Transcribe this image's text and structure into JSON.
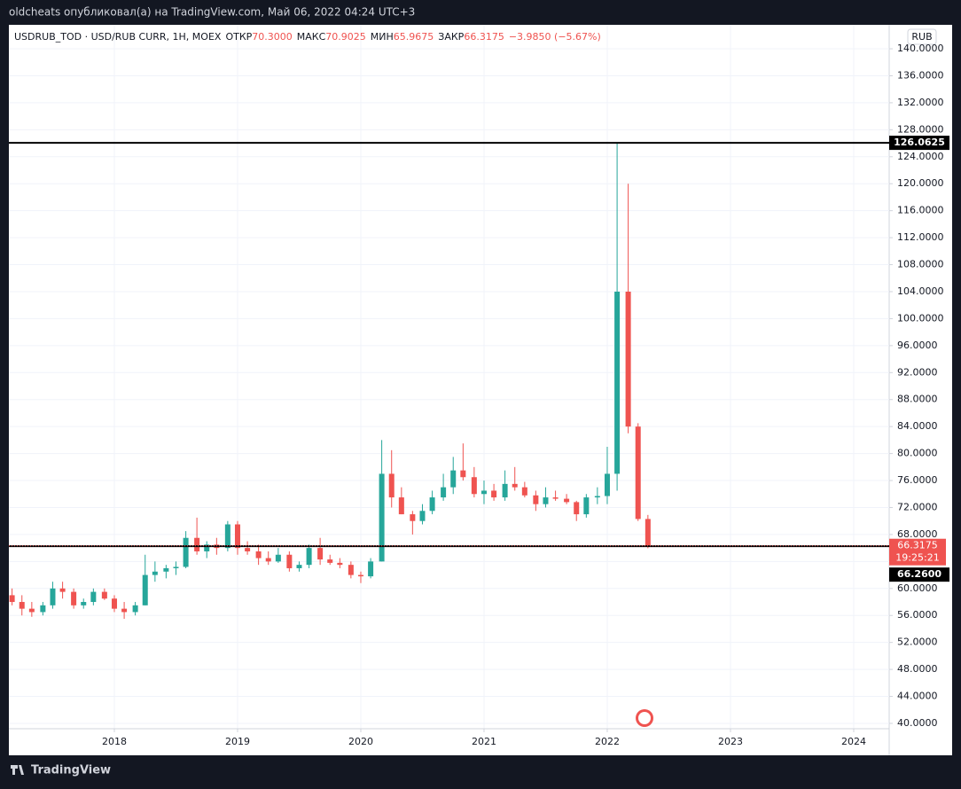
{
  "header": {
    "publisher": "oldcheats опубликовал(а) на TradingView.com, Май 06, 2022 04:24 UTC+3"
  },
  "footer": {
    "brand": "TradingView"
  },
  "chart_data": {
    "type": "candlestick",
    "legend": {
      "symbol": "USDRUB_TOD · USD/RUB CURR, 1H, MOEX",
      "fields": [
        {
          "label": "ОТКР",
          "value": "70.3000"
        },
        {
          "label": "МАКС",
          "value": "70.9025"
        },
        {
          "label": "МИН",
          "value": "65.9675"
        },
        {
          "label": "ЗАКР",
          "value": "66.3175"
        }
      ],
      "change": "−3.9850 (−5.67%)"
    },
    "currency": "RUB",
    "up_color": "#26a69a",
    "down_color": "#ef5350",
    "grid": true,
    "x": [
      2017.17,
      2017.25,
      2017.33,
      2017.42,
      2017.5,
      2017.58,
      2017.67,
      2017.75,
      2017.83,
      2017.92,
      2018.0,
      2018.08,
      2018.17,
      2018.25,
      2018.33,
      2018.42,
      2018.5,
      2018.58,
      2018.67,
      2018.75,
      2018.83,
      2018.92,
      2019.0,
      2019.08,
      2019.17,
      2019.25,
      2019.33,
      2019.42,
      2019.5,
      2019.58,
      2019.67,
      2019.75,
      2019.83,
      2019.92,
      2020.0,
      2020.08,
      2020.17,
      2020.25,
      2020.33,
      2020.42,
      2020.5,
      2020.58,
      2020.67,
      2020.75,
      2020.83,
      2020.92,
      2021.0,
      2021.08,
      2021.17,
      2021.25,
      2021.33,
      2021.42,
      2021.5,
      2021.58,
      2021.67,
      2021.75,
      2021.83,
      2021.92,
      2022.0,
      2022.08,
      2022.17,
      2022.25,
      2022.33
    ],
    "open": [
      59,
      58,
      57,
      56.5,
      57.5,
      60,
      59.5,
      57.5,
      58,
      59.5,
      58.5,
      57,
      56.5,
      57.5,
      62,
      62.5,
      63,
      63.2,
      67.5,
      65.5,
      66.5,
      66,
      69.5,
      66,
      65.5,
      64.5,
      64,
      65,
      63,
      63.5,
      66,
      64.3,
      63.8,
      63.5,
      62,
      61.8,
      64,
      77,
      73.5,
      71,
      70,
      71.5,
      73.5,
      75,
      77.5,
      76.5,
      74,
      74.5,
      73.5,
      75.5,
      75,
      73.8,
      72.5,
      73.5,
      73.3,
      72.8,
      71,
      73.5,
      73.7,
      77,
      104,
      84,
      70.3
    ],
    "high": [
      60,
      59,
      58,
      58,
      61,
      61,
      60,
      58.5,
      60,
      60,
      59,
      58,
      58,
      65,
      64,
      63.5,
      64,
      68.5,
      70.5,
      67,
      67.5,
      70,
      70,
      67,
      66.5,
      65.5,
      66,
      65.5,
      64,
      66.5,
      67.5,
      65,
      64.5,
      64,
      62.5,
      64.5,
      82,
      80.5,
      75,
      71.5,
      72.5,
      74.5,
      77,
      79.5,
      81.5,
      78,
      76,
      75.5,
      77.5,
      78,
      75.8,
      74.5,
      75,
      74.5,
      74,
      73,
      74,
      75,
      81,
      126.0625,
      120,
      84.5,
      70.9025
    ],
    "low": [
      57.5,
      56,
      55.8,
      56,
      57,
      58.5,
      57,
      57,
      57.5,
      58.3,
      56.5,
      55.5,
      56,
      57.5,
      61,
      61.5,
      62,
      63,
      65,
      64.5,
      65,
      65.5,
      65,
      65,
      63.5,
      63.5,
      63.8,
      62.5,
      62.5,
      63,
      63.5,
      63.5,
      63,
      61.5,
      60.8,
      61.5,
      64,
      72,
      71,
      68,
      69.5,
      71,
      73,
      74,
      76,
      73.5,
      72.5,
      73,
      73,
      74.5,
      73.5,
      71.5,
      72,
      73,
      72.5,
      70,
      70.5,
      72.5,
      72.5,
      74.5,
      83,
      70,
      65.9675
    ],
    "close": [
      58,
      57,
      56.5,
      57.5,
      60,
      59.5,
      57.5,
      58,
      59.5,
      58.5,
      57,
      56.5,
      57.5,
      62,
      62.5,
      63,
      63.2,
      67.5,
      65.5,
      66.5,
      66,
      69.5,
      66,
      65.5,
      64.5,
      64,
      65,
      63,
      63.5,
      66,
      64.3,
      63.8,
      63.5,
      62,
      61.8,
      64,
      77,
      73.5,
      71,
      70,
      71.5,
      73.5,
      75,
      77.5,
      76.5,
      74,
      74.5,
      73.5,
      75.5,
      75,
      73.8,
      72.5,
      73.5,
      73.3,
      72.8,
      71,
      73.5,
      73.7,
      77,
      104,
      84,
      70.3,
      66.3175
    ],
    "xlim": [
      2017.144,
      2024.288
    ],
    "xticks": [
      2018,
      2019,
      2020,
      2021,
      2022,
      2023,
      2024
    ],
    "ylim": [
      39.21,
      143.29
    ],
    "yticks": [
      {
        "value": 40,
        "label": "40.0000"
      },
      {
        "value": 44,
        "label": "44.0000"
      },
      {
        "value": 48,
        "label": "48.0000"
      },
      {
        "value": 52,
        "label": "52.0000"
      },
      {
        "value": 56,
        "label": "56.0000"
      },
      {
        "value": 60,
        "label": "60.0000"
      },
      {
        "value": 64,
        "label": "64.0000"
      },
      {
        "value": 68,
        "label": "68.0000"
      },
      {
        "value": 72,
        "label": "72.0000"
      },
      {
        "value": 76,
        "label": "76.0000"
      },
      {
        "value": 80,
        "label": "80.0000"
      },
      {
        "value": 84,
        "label": "84.0000"
      },
      {
        "value": 88,
        "label": "88.0000"
      },
      {
        "value": 92,
        "label": "92.0000"
      },
      {
        "value": 96,
        "label": "96.0000"
      },
      {
        "value": 100,
        "label": "100.0000"
      },
      {
        "value": 104,
        "label": "104.0000"
      },
      {
        "value": 108,
        "label": "108.0000"
      },
      {
        "value": 112,
        "label": "112.0000"
      },
      {
        "value": 116,
        "label": "116.0000"
      },
      {
        "value": 120,
        "label": "120.0000"
      },
      {
        "value": 124,
        "label": "124.0000"
      },
      {
        "value": 128,
        "label": "128.0000"
      },
      {
        "value": 132,
        "label": "132.0000"
      },
      {
        "value": 136,
        "label": "136.0000"
      },
      {
        "value": 140,
        "label": "140.0000"
      }
    ],
    "hlines": [
      {
        "value": 126.0625,
        "label": "126.0625"
      },
      {
        "value": 66.26,
        "label": "66.2600"
      }
    ],
    "last_price": {
      "value": 66.3175,
      "label": "66.3175"
    },
    "countdown": "19:25:21"
  }
}
